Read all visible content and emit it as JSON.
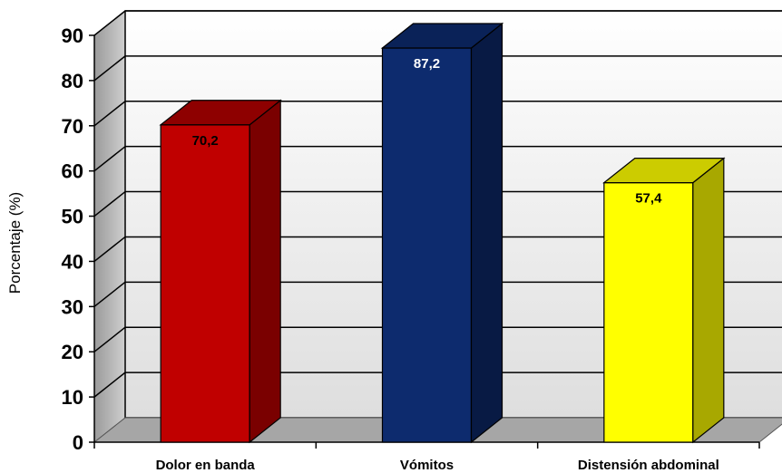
{
  "chart_data": {
    "type": "bar",
    "categories": [
      "Dolor en banda",
      "Vómitos",
      "Distensión abdominal"
    ],
    "values": [
      70.2,
      87.2,
      57.4
    ],
    "value_labels": [
      "70,2",
      "87,2",
      "57,4"
    ],
    "ylabel": "Porcentaje (%)",
    "xlabel": "",
    "ylim": [
      0,
      90
    ],
    "yticks": [
      0,
      10,
      20,
      30,
      40,
      50,
      60,
      70,
      80,
      90
    ],
    "grid": true,
    "legend": "none",
    "bar_colors": [
      {
        "front": "#c00000",
        "top": "#8e0000",
        "side": "#7a0000",
        "label": "#000000"
      },
      {
        "front": "#0d2b6e",
        "top": "#0a2258",
        "side": "#081a44",
        "label": "#ffffff"
      },
      {
        "front": "#ffff00",
        "top": "#cccc00",
        "side": "#a8a800",
        "label": "#000000"
      }
    ],
    "wall_color": "#eeeeee",
    "floor_color": "#a6a6a6"
  }
}
